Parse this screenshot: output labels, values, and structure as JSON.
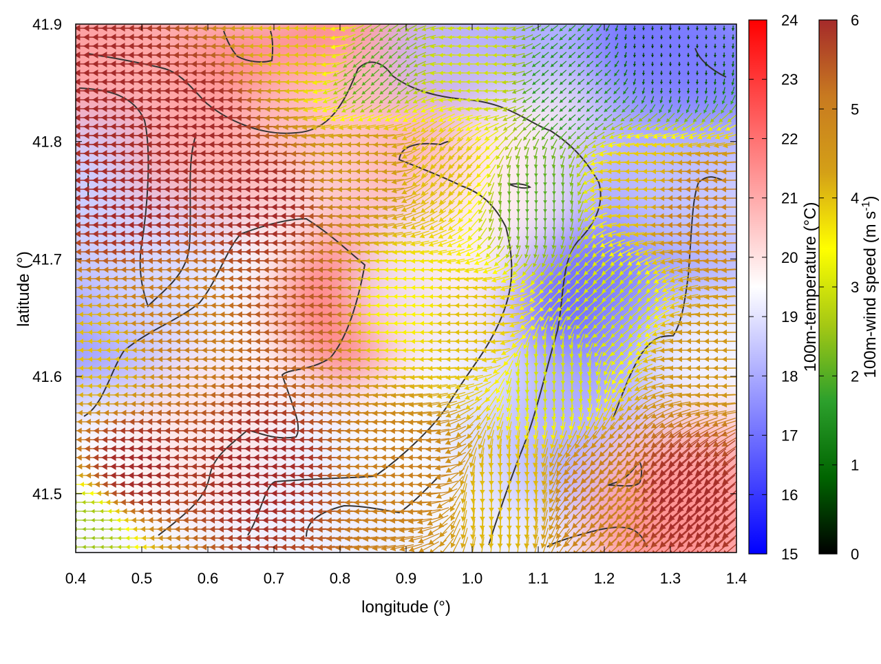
{
  "chart_data": {
    "type": "heatmap",
    "xlabel": "longitude (°)",
    "ylabel": "latitude (°)",
    "xlim": [
      0.4,
      1.4
    ],
    "ylim": [
      41.45,
      41.9
    ],
    "xticks": [
      "0.4",
      "0.5",
      "0.6",
      "0.7",
      "0.8",
      "0.9",
      "1.0",
      "1.1",
      "1.2",
      "1.3",
      "1.4"
    ],
    "yticks": [
      "41.5",
      "41.6",
      "41.7",
      "41.8",
      "41.9"
    ],
    "temperature_colorbar": {
      "label": "100m-temperature (°C)",
      "range": [
        15,
        24
      ],
      "ticks": [
        "15",
        "16",
        "17",
        "18",
        "19",
        "20",
        "21",
        "22",
        "23",
        "24"
      ],
      "colors": [
        "#0000ff",
        "#ffffff",
        "#ff0000"
      ]
    },
    "wind_colorbar": {
      "label_main": "100m-wind speed (m s",
      "label_exp": "-1",
      "label_close": ")",
      "range": [
        0,
        6
      ],
      "ticks": [
        "0",
        "1",
        "2",
        "3",
        "4",
        "5",
        "6"
      ],
      "colors": [
        "#000000",
        "#006400",
        "#2ca02c",
        "#a5c814",
        "#ffff00",
        "#d4a017",
        "#c87a20",
        "#a52a2a"
      ]
    },
    "temperature_field_samples": [
      {
        "lon": 0.45,
        "lat": 41.87,
        "t": 21.5
      },
      {
        "lon": 0.55,
        "lat": 41.86,
        "t": 21.0
      },
      {
        "lon": 0.68,
        "lat": 41.84,
        "t": 21.8
      },
      {
        "lon": 0.85,
        "lat": 41.88,
        "t": 22.0
      },
      {
        "lon": 0.92,
        "lat": 41.86,
        "t": 21.0
      },
      {
        "lon": 1.0,
        "lat": 41.88,
        "t": 18.2
      },
      {
        "lon": 1.15,
        "lat": 41.88,
        "t": 18.0
      },
      {
        "lon": 1.3,
        "lat": 41.89,
        "t": 16.8
      },
      {
        "lon": 1.36,
        "lat": 41.85,
        "t": 17.2
      },
      {
        "lon": 0.45,
        "lat": 41.75,
        "t": 18.5
      },
      {
        "lon": 0.6,
        "lat": 41.78,
        "t": 21.0
      },
      {
        "lon": 0.78,
        "lat": 41.8,
        "t": 20.5
      },
      {
        "lon": 0.95,
        "lat": 41.76,
        "t": 20.8
      },
      {
        "lon": 1.1,
        "lat": 41.78,
        "t": 19.8
      },
      {
        "lon": 1.25,
        "lat": 41.76,
        "t": 18.0
      },
      {
        "lon": 1.38,
        "lat": 41.74,
        "t": 18.5
      },
      {
        "lon": 0.42,
        "lat": 41.62,
        "t": 17.5
      },
      {
        "lon": 0.55,
        "lat": 41.68,
        "t": 18.8
      },
      {
        "lon": 0.72,
        "lat": 41.66,
        "t": 19.5
      },
      {
        "lon": 0.82,
        "lat": 41.66,
        "t": 22.0
      },
      {
        "lon": 0.95,
        "lat": 41.68,
        "t": 19.2
      },
      {
        "lon": 1.05,
        "lat": 41.7,
        "t": 19.8
      },
      {
        "lon": 1.18,
        "lat": 41.66,
        "t": 16.6
      },
      {
        "lon": 1.33,
        "lat": 41.64,
        "t": 17.8
      },
      {
        "lon": 1.38,
        "lat": 41.6,
        "t": 19.5
      },
      {
        "lon": 0.45,
        "lat": 41.52,
        "t": 19.5
      },
      {
        "lon": 0.6,
        "lat": 41.55,
        "t": 20.0
      },
      {
        "lon": 0.8,
        "lat": 41.5,
        "t": 19.2
      },
      {
        "lon": 0.95,
        "lat": 41.55,
        "t": 19.5
      },
      {
        "lon": 1.08,
        "lat": 41.55,
        "t": 18.8
      },
      {
        "lon": 1.18,
        "lat": 41.55,
        "t": 18.0
      },
      {
        "lon": 1.3,
        "lat": 41.5,
        "t": 20.2
      },
      {
        "lon": 1.38,
        "lat": 41.5,
        "t": 21.0
      },
      {
        "lon": 1.3,
        "lat": 41.47,
        "t": 21.5
      }
    ],
    "wind_field_samples": [
      {
        "lon": 0.45,
        "lat": 41.85,
        "speed": 6.0,
        "dir": "W"
      },
      {
        "lon": 0.6,
        "lat": 41.82,
        "speed": 6.0,
        "dir": "W"
      },
      {
        "lon": 0.75,
        "lat": 41.88,
        "speed": 4.0,
        "dir": "W"
      },
      {
        "lon": 0.85,
        "lat": 41.86,
        "speed": 2.0,
        "dir": "SW"
      },
      {
        "lon": 1.0,
        "lat": 41.86,
        "speed": 3.0,
        "dir": "W"
      },
      {
        "lon": 1.15,
        "lat": 41.85,
        "speed": 1.5,
        "dir": "SW"
      },
      {
        "lon": 1.3,
        "lat": 41.88,
        "speed": 0.5,
        "dir": "S"
      },
      {
        "lon": 0.5,
        "lat": 41.75,
        "speed": 6.0,
        "dir": "W"
      },
      {
        "lon": 0.7,
        "lat": 41.75,
        "speed": 6.0,
        "dir": "W"
      },
      {
        "lon": 0.85,
        "lat": 41.78,
        "speed": 4.5,
        "dir": "W"
      },
      {
        "lon": 0.95,
        "lat": 41.78,
        "speed": 4.0,
        "dir": "SW"
      },
      {
        "lon": 1.1,
        "lat": 41.75,
        "speed": 2.0,
        "dir": "S"
      },
      {
        "lon": 1.25,
        "lat": 41.76,
        "speed": 4.0,
        "dir": "W"
      },
      {
        "lon": 1.35,
        "lat": 41.74,
        "speed": 5.0,
        "dir": "W"
      },
      {
        "lon": 0.45,
        "lat": 41.62,
        "speed": 4.0,
        "dir": "W"
      },
      {
        "lon": 0.55,
        "lat": 41.65,
        "speed": 5.0,
        "dir": "W"
      },
      {
        "lon": 0.75,
        "lat": 41.66,
        "speed": 5.5,
        "dir": "W"
      },
      {
        "lon": 0.9,
        "lat": 41.66,
        "speed": 3.5,
        "dir": "W"
      },
      {
        "lon": 1.0,
        "lat": 41.64,
        "speed": 4.0,
        "dir": "W"
      },
      {
        "lon": 1.12,
        "lat": 41.6,
        "speed": 3.0,
        "dir": "S"
      },
      {
        "lon": 1.22,
        "lat": 41.66,
        "speed": 3.0,
        "dir": "SW"
      },
      {
        "lon": 1.35,
        "lat": 41.62,
        "speed": 4.5,
        "dir": "W"
      },
      {
        "lon": 0.5,
        "lat": 41.52,
        "speed": 6.0,
        "dir": "W"
      },
      {
        "lon": 0.7,
        "lat": 41.52,
        "speed": 6.0,
        "dir": "W"
      },
      {
        "lon": 0.9,
        "lat": 41.52,
        "speed": 5.0,
        "dir": "W"
      },
      {
        "lon": 1.05,
        "lat": 41.5,
        "speed": 4.0,
        "dir": "S"
      },
      {
        "lon": 1.2,
        "lat": 41.5,
        "speed": 5.0,
        "dir": "SW"
      },
      {
        "lon": 1.32,
        "lat": 41.5,
        "speed": 6.0,
        "dir": "SW"
      },
      {
        "lon": 0.42,
        "lat": 41.47,
        "speed": 2.5,
        "dir": "W"
      }
    ]
  }
}
